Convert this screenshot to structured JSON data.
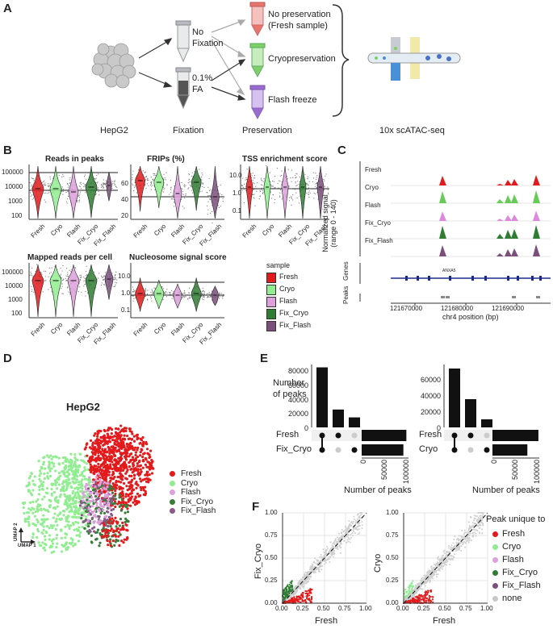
{
  "panels": {
    "a": "A",
    "b": "B",
    "c": "C",
    "d": "D",
    "e": "E",
    "f": "F"
  },
  "panel_a": {
    "cell_label": "HepG2",
    "fixation_label": "Fixation",
    "preservation_label": "Preservation",
    "seq_label": "10x scATAC-seq",
    "no_fix": "No\nFixation",
    "fa": "0.1%\nFA",
    "no_pres": "No preservation\n(Fresh sample)",
    "cryo": "Cryopreservation",
    "flash": "Flash freeze",
    "colors": {
      "red": "#e7766f",
      "green": "#7fcf6b",
      "purple": "#9b6bd0",
      "tube": "#cfd3d8"
    }
  },
  "panel_b": {
    "titles": [
      "Reads in peaks",
      "FRIPs (%)",
      "TSS enrichment score",
      "Mapped reads per cell",
      "Nucleosome signal score"
    ],
    "samples": [
      "Fresh",
      "Cryo",
      "Flash",
      "Fix_Cryo",
      "Fix_Flash"
    ],
    "colors": [
      "#e31a1c",
      "#90ee90",
      "#dda0dd",
      "#2e7d32",
      "#7b4f7b"
    ],
    "legend_title": "sample",
    "axes": {
      "reads_in_peaks": [
        "100000",
        "10000",
        "1000",
        "100"
      ],
      "frips": [
        "60",
        "40",
        "20"
      ],
      "tss": [
        "10.0",
        "1.0",
        "0.1"
      ],
      "mapped": [
        "100000",
        "10000",
        "1000",
        "100"
      ],
      "nucleosome": [
        "10.0",
        "1.0",
        "0.1"
      ]
    }
  },
  "panel_c": {
    "tracks": [
      "Fresh",
      "Cryo",
      "Flash",
      "Fix_Cryo",
      "Fix_Flash"
    ],
    "track_colors": [
      "#e31a1c",
      "#66cc55",
      "#dd88dd",
      "#2e7d32",
      "#7b4f7b"
    ],
    "ylabel": "Normalized signal\n(range 0 - 140)",
    "genes_label": "Genes",
    "peaks_label": "Peaks",
    "gene_name": "ANXA5",
    "xticks": [
      "121670000",
      "121680000",
      "121690000"
    ],
    "xlabel": "chr4 position (bp)"
  },
  "panel_d": {
    "title": "HepG2",
    "legend": [
      "Fresh",
      "Cryo",
      "Flash",
      "Fix_Cryo",
      "Fix_Flash"
    ],
    "legend_colors": [
      "#e31a1c",
      "#90ee90",
      "#dda0dd",
      "#3a7d3a",
      "#8b5a8b"
    ],
    "umap1": "UMAP 1",
    "umap2": "UMAP 2"
  },
  "panel_e": {
    "ylabel": "Number\nof peaks",
    "xlabel": "Number of peaks",
    "left": {
      "rows": [
        "Fresh",
        "Fix_Cryo"
      ],
      "intersections": [
        84000,
        25000,
        14000
      ],
      "yticks": [
        "80000",
        "60000",
        "40000",
        "20000",
        "0"
      ],
      "set_sizes": [
        105000,
        98000
      ],
      "xticks": [
        "0",
        "50000",
        "100000"
      ]
    },
    "right": {
      "rows": [
        "Fresh",
        "Cryo"
      ],
      "intersections": [
        73000,
        35000,
        10000
      ],
      "yticks": [
        "60000",
        "40000",
        "20000",
        "0"
      ],
      "set_sizes": [
        108000,
        82000
      ],
      "xticks": [
        "0",
        "50000",
        "100000"
      ]
    }
  },
  "panel_f": {
    "left": {
      "xlabel": "Fresh",
      "ylabel": "Fix_Cryo"
    },
    "right": {
      "xlabel": "Fresh",
      "ylabel": "Cryo"
    },
    "ticks": [
      "0.00",
      "0.25",
      "0.50",
      "0.75",
      "1.00"
    ],
    "legend_title": "Peak unique to",
    "legend": [
      "Fresh",
      "Cryo",
      "Flash",
      "Fix_Cryo",
      "Fix_Flash",
      "none"
    ],
    "legend_colors": [
      "#e31a1c",
      "#90ee90",
      "#dda0dd",
      "#2e7d32",
      "#7b4f7b",
      "#c8c8c8"
    ]
  }
}
